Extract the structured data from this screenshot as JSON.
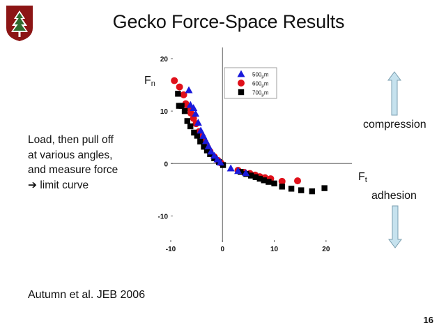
{
  "slide": {
    "title": "Gecko Force-Space Results",
    "description_lines": [
      "Load, then pull off",
      "at various angles,",
      "and measure force",
      "limit curve"
    ],
    "arrow_glyph": "➔",
    "citation": "Autumn et al. JEB 2006",
    "page_number": "16",
    "compression_label": "compression",
    "adhesion_label": "adhesion",
    "logo_icon": "stanford-tree-logo-icon",
    "logo_color": "#8c1515",
    "arrow_color": "#c6e2ee"
  },
  "chart_data": {
    "type": "scatter",
    "title": "",
    "xlim": [
      -10,
      25
    ],
    "ylim": [
      -15,
      20
    ],
    "x_ticks": [
      "-10",
      "0",
      "10",
      "20"
    ],
    "y_ticks": [
      "20",
      "10",
      "0",
      "-10"
    ],
    "xlabel": {
      "main": "F",
      "sub": "t"
    },
    "ylabel": {
      "main": "F",
      "sub": "n"
    },
    "legend_position": "top-center",
    "series": [
      {
        "name": "500µm",
        "legend": {
          "value": "500",
          "unit_sub": "µ",
          "unit": "m"
        },
        "marker": "triangle",
        "color": "#1a1adb",
        "points": [
          [
            -6.5,
            14
          ],
          [
            -6.2,
            11.2
          ],
          [
            -5.6,
            10.6
          ],
          [
            -5.2,
            9.5
          ],
          [
            -4.7,
            7.8
          ],
          [
            -4.2,
            6.3
          ],
          [
            -3.7,
            5.3
          ],
          [
            -3.2,
            4.3
          ],
          [
            -2.7,
            3.3
          ],
          [
            -2.2,
            2.3
          ],
          [
            -1.6,
            1.5
          ],
          [
            -1,
            0.8
          ],
          [
            -0.4,
            0.2
          ],
          [
            1.6,
            -0.9
          ],
          [
            3,
            -1.4
          ],
          [
            4.5,
            -1.8
          ]
        ]
      },
      {
        "name": "600µm",
        "legend": {
          "value": "600",
          "unit_sub": "µ",
          "unit": "m"
        },
        "marker": "circle",
        "color": "#e0101a",
        "points": [
          [
            -9.3,
            15.8
          ],
          [
            -8.3,
            14.6
          ],
          [
            -7.5,
            13.1
          ],
          [
            -7.1,
            11.4
          ],
          [
            -6.6,
            10.6
          ],
          [
            -6.1,
            9.6
          ],
          [
            -5.6,
            8.6
          ],
          [
            -5.1,
            7.6
          ],
          [
            -4.5,
            6.1
          ],
          [
            -3.9,
            5.1
          ],
          [
            -3.4,
            4.1
          ],
          [
            -2.9,
            3.1
          ],
          [
            -2.4,
            2.3
          ],
          [
            -1.6,
            1.3
          ],
          [
            -0.9,
            0.6
          ],
          [
            -0.3,
            0.1
          ],
          [
            3,
            -1.3
          ],
          [
            4.2,
            -1.7
          ],
          [
            5.3,
            -1.9
          ],
          [
            6.3,
            -2.2
          ],
          [
            7.2,
            -2.5
          ],
          [
            8.2,
            -2.7
          ],
          [
            9.3,
            -2.9
          ],
          [
            11.5,
            -3.4
          ],
          [
            14.5,
            -3.3
          ]
        ]
      },
      {
        "name": "700µm",
        "legend": {
          "value": "700",
          "unit_sub": "µ",
          "unit": "m"
        },
        "marker": "square",
        "color": "#000000",
        "points": [
          [
            -8.6,
            13.3
          ],
          [
            -8.4,
            11
          ],
          [
            -7.9,
            11
          ],
          [
            -7.3,
            10
          ],
          [
            -6.8,
            8.1
          ],
          [
            -6.2,
            7.1
          ],
          [
            -5.5,
            5.9
          ],
          [
            -4.9,
            5.3
          ],
          [
            -4.3,
            4.2
          ],
          [
            -3.6,
            3.2
          ],
          [
            -3,
            2.5
          ],
          [
            -2.4,
            1.8
          ],
          [
            -1.6,
            1
          ],
          [
            -0.7,
            0.3
          ],
          [
            0.1,
            -0.3
          ],
          [
            3.5,
            -1.6
          ],
          [
            4.6,
            -2
          ],
          [
            5.5,
            -2.3
          ],
          [
            6.4,
            -2.6
          ],
          [
            7.2,
            -2.9
          ],
          [
            8,
            -3.2
          ],
          [
            8.9,
            -3.5
          ],
          [
            10,
            -3.8
          ],
          [
            11.5,
            -4.4
          ],
          [
            13.3,
            -4.8
          ],
          [
            15.2,
            -5.1
          ],
          [
            17.3,
            -5.3
          ],
          [
            19.7,
            -4.7
          ]
        ]
      }
    ]
  }
}
